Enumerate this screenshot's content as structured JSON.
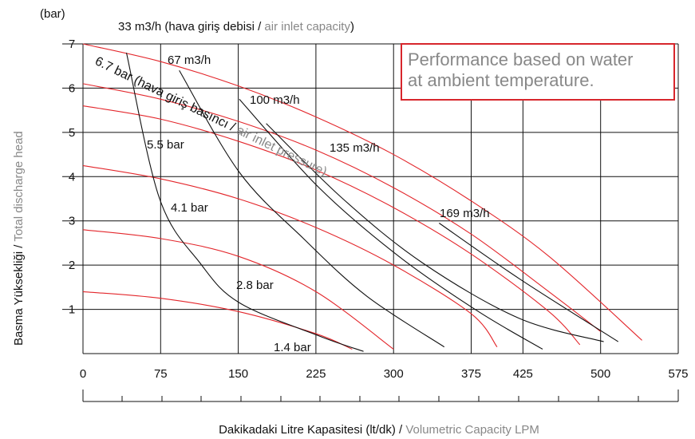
{
  "chart_data": {
    "type": "line",
    "title": [
      "33 m3/h (hava giriş debisi / ",
      "air inlet capacity",
      ")"
    ],
    "y_unit": "(bar)",
    "y_label": [
      "Basma Yüksekliği / ",
      "Total discharge head"
    ],
    "x_label": [
      "Dakikadaki Litre Kapasitesi (lt/dk) / ",
      "Volumetric Capacity LPM"
    ],
    "note": [
      "Performance based on water",
      "at ambient temperature."
    ],
    "xlim": [
      0,
      575
    ],
    "ylim": [
      0,
      7
    ],
    "xticks": [
      0,
      75,
      150,
      225,
      300,
      375,
      425,
      500,
      575
    ],
    "yticks": [
      1,
      2,
      3,
      4,
      5,
      6,
      7
    ],
    "grid": true,
    "series": [
      {
        "color": "#e3262b",
        "x": [
          0,
          75,
          150,
          225,
          300,
          375,
          450,
          540
        ],
        "values": [
          7,
          6.6,
          6.05,
          5.35,
          4.5,
          3.45,
          2.2,
          0.3
        ]
      },
      {
        "color": "#e3262b",
        "x": [
          0,
          75,
          150,
          225,
          300,
          375,
          450,
          500
        ],
        "values": [
          6.1,
          5.75,
          5.25,
          4.6,
          3.75,
          2.7,
          1.4,
          0.5
        ]
      },
      {
        "color": "#e3262b",
        "x": [
          0,
          75,
          150,
          225,
          300,
          375,
          450,
          480
        ],
        "values": [
          5.6,
          5.3,
          4.8,
          4.15,
          3.3,
          2.25,
          0.95,
          0.2
        ]
      },
      {
        "color": "#e3262b",
        "x": [
          0,
          75,
          150,
          225,
          300,
          375,
          400
        ],
        "values": [
          4.25,
          3.95,
          3.5,
          2.85,
          2.0,
          0.9,
          0.15
        ]
      },
      {
        "color": "#e3262b",
        "x": [
          0,
          75,
          150,
          225,
          300
        ],
        "values": [
          2.8,
          2.6,
          2.2,
          1.4,
          0.1
        ]
      },
      {
        "color": "#e3262b",
        "x": [
          0,
          75,
          150,
          225,
          260
        ],
        "values": [
          1.4,
          1.25,
          0.95,
          0.45,
          0.1
        ]
      },
      {
        "color": "#111111",
        "x": [
          42,
          74,
          113,
          151,
          228,
          271
        ],
        "values": [
          6.8,
          3.5,
          2.05,
          1.15,
          0.4,
          0.05
        ]
      },
      {
        "color": "#111111",
        "x": [
          93,
          151,
          213,
          274,
          349
        ],
        "values": [
          6.4,
          4.1,
          2.6,
          1.3,
          0.15
        ]
      },
      {
        "color": "#111111",
        "x": [
          151,
          228,
          305,
          382,
          444
        ],
        "values": [
          5.75,
          3.75,
          2.2,
          0.95,
          0.1
        ]
      },
      {
        "color": "#111111",
        "x": [
          177,
          251,
          328,
          421,
          503
        ],
        "values": [
          5.2,
          3.5,
          2.05,
          0.8,
          0.27
        ]
      },
      {
        "color": "#111111",
        "x": [
          344,
          421,
          517
        ],
        "values": [
          2.95,
          1.7,
          0.27
        ]
      }
    ],
    "annotations": [
      "67 m3/h",
      "100 m3/h",
      "135 m3/h",
      "169 m3/h",
      "5.5 bar",
      "4.1 bar",
      "2.8 bar",
      "1.4 bar"
    ],
    "pressure_label": [
      "6.7 bar (hava giriş basıncı / ",
      "air inlet pressure)"
    ]
  }
}
